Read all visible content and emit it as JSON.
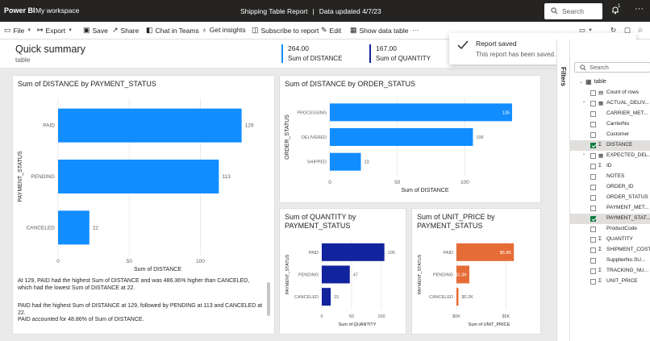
{
  "topbar": {
    "brand": "Power BI",
    "workspace": "My workspace",
    "report_name": "Shipping Table Report",
    "sep": "|",
    "updated": "Data updated 4/7/23",
    "search_placeholder": "Search",
    "notif_count": "1",
    "more": "···"
  },
  "toolbar": {
    "file": "File",
    "export": "Export",
    "save": "Save",
    "share": "Share",
    "chat": "Chat in Teams",
    "insights": "Get insights",
    "subscribe": "Subscribe to report",
    "edit": "Edit",
    "show_data": "Show data table",
    "more": "···"
  },
  "page": {
    "title": "Quick summary",
    "subtitle": "table"
  },
  "kpis": [
    {
      "value": "264.00",
      "label": "Sum of DISTANCE"
    },
    {
      "value": "167.00",
      "label": "Sum of QUANTITY"
    }
  ],
  "toast": {
    "title": "Report saved",
    "message": "This report has been saved.",
    "close": "×"
  },
  "filters_label": "Filters",
  "fields_pane": {
    "search_placeholder": "Search",
    "table_name": "table",
    "fields": [
      {
        "name": "Count of rows",
        "type": "calc",
        "checked": false,
        "expandable": false
      },
      {
        "name": "ACTUAL_DELIV...",
        "type": "date",
        "checked": false,
        "expandable": true
      },
      {
        "name": "CARRIER_MET...",
        "type": "text",
        "checked": false,
        "expandable": false
      },
      {
        "name": "CarrierNo",
        "type": "text",
        "checked": false,
        "expandable": false
      },
      {
        "name": "Customer",
        "type": "text",
        "checked": false,
        "expandable": false
      },
      {
        "name": "DISTANCE",
        "type": "sum",
        "checked": true,
        "expandable": false
      },
      {
        "name": "EXPECTED_DEL...",
        "type": "date",
        "checked": false,
        "expandable": true
      },
      {
        "name": "ID",
        "type": "sum",
        "checked": false,
        "expandable": false
      },
      {
        "name": "NOTES",
        "type": "text",
        "checked": false,
        "expandable": false
      },
      {
        "name": "ORDER_ID",
        "type": "text",
        "checked": false,
        "expandable": false
      },
      {
        "name": "ORDER_STATUS",
        "type": "text",
        "checked": false,
        "expandable": false
      },
      {
        "name": "PAYMENT_MET...",
        "type": "text",
        "checked": false,
        "expandable": false
      },
      {
        "name": "PAYMENT_STAT...",
        "type": "text",
        "checked": true,
        "expandable": false
      },
      {
        "name": "ProductCode",
        "type": "text",
        "checked": false,
        "expandable": false
      },
      {
        "name": "QUANTITY",
        "type": "sum",
        "checked": false,
        "expandable": false
      },
      {
        "name": "SHIPMENT_COST",
        "type": "sum",
        "checked": false,
        "expandable": false
      },
      {
        "name": "SupplierNo.SU...",
        "type": "text",
        "checked": false,
        "expandable": false
      },
      {
        "name": "TRACKING_NU...",
        "type": "sum",
        "checked": false,
        "expandable": false
      },
      {
        "name": "UNIT_PRICE",
        "type": "sum",
        "checked": false,
        "expandable": false
      }
    ]
  },
  "narrative": [
    "At 129, PAID had the highest Sum of DISTANCE and was 486.36% higher than CANCELED, which had the lowest Sum of DISTANCE at 22.",
    "PAID had the highest Sum of DISTANCE at 129, followed by PENDING at 113 and CANCELED at 22.",
    "PAID accounted for 48.86% of Sum of DISTANCE."
  ],
  "colors": {
    "blue": "#118dff",
    "navy": "#12239e",
    "orange": "#e66c37",
    "topbar": "#252423",
    "selected_row": "#e1dfdd",
    "check_green": "#107c41"
  },
  "chart_data": [
    {
      "id": "dist_payment",
      "type": "bar",
      "orientation": "horizontal",
      "title": "Sum of DISTANCE by PAYMENT_STATUS",
      "xlabel": "Sum of DISTANCE",
      "ylabel": "PAYMENT_STATUS",
      "categories": [
        "PAID",
        "PENDING",
        "CANCELED"
      ],
      "values": [
        129,
        113,
        22
      ],
      "value_labels": [
        "129",
        "113",
        "22"
      ],
      "ticks": [
        0,
        50,
        100
      ],
      "tick_labels": [
        "0",
        "50",
        "100"
      ],
      "xlim": [
        0,
        140
      ],
      "color": "#118dff"
    },
    {
      "id": "dist_order",
      "type": "bar",
      "orientation": "horizontal",
      "title": "Sum of DISTANCE by ORDER_STATUS",
      "xlabel": "Sum of DISTANCE",
      "ylabel": "ORDER_STATUS",
      "categories": [
        "PROCESSING",
        "DELIVERED",
        "SHIPPED"
      ],
      "values": [
        135,
        106,
        23
      ],
      "value_labels": [
        "135",
        "106",
        "23"
      ],
      "ticks": [
        0,
        50,
        100
      ],
      "tick_labels": [
        "0",
        "50",
        "100"
      ],
      "xlim": [
        0,
        141
      ],
      "color": "#118dff"
    },
    {
      "id": "qty_payment",
      "type": "bar",
      "orientation": "horizontal",
      "title": "Sum of QUANTITY by PAYMENT_STATUS",
      "xlabel": "Sum of QUANTITY",
      "ylabel": "PAYMENT_STATUS",
      "categories": [
        "PAID",
        "PENDING",
        "CANCELED"
      ],
      "values": [
        105,
        47,
        15
      ],
      "value_labels": [
        "105",
        "47",
        "15"
      ],
      "ticks": [
        0,
        50,
        100
      ],
      "tick_labels": [
        "0",
        "50",
        "100"
      ],
      "xlim": [
        0,
        119
      ],
      "color": "#12239e"
    },
    {
      "id": "price_payment",
      "type": "bar",
      "orientation": "horizontal",
      "title": "Sum of UNIT_PRICE by PAYMENT_STATUS",
      "xlabel": "Sum of UNIT_PRICE",
      "ylabel": "PAYMENT_STATUS",
      "categories": [
        "PAID",
        "PENDING",
        "CANCELED"
      ],
      "values": [
        5800,
        1300,
        200
      ],
      "value_labels": [
        "$5.8K",
        "$1.3K",
        "$0.2K"
      ],
      "ticks": [
        0,
        5000
      ],
      "tick_labels": [
        "$0K",
        "$5K"
      ],
      "xlim": [
        0,
        6600
      ],
      "color": "#e66c37"
    }
  ]
}
